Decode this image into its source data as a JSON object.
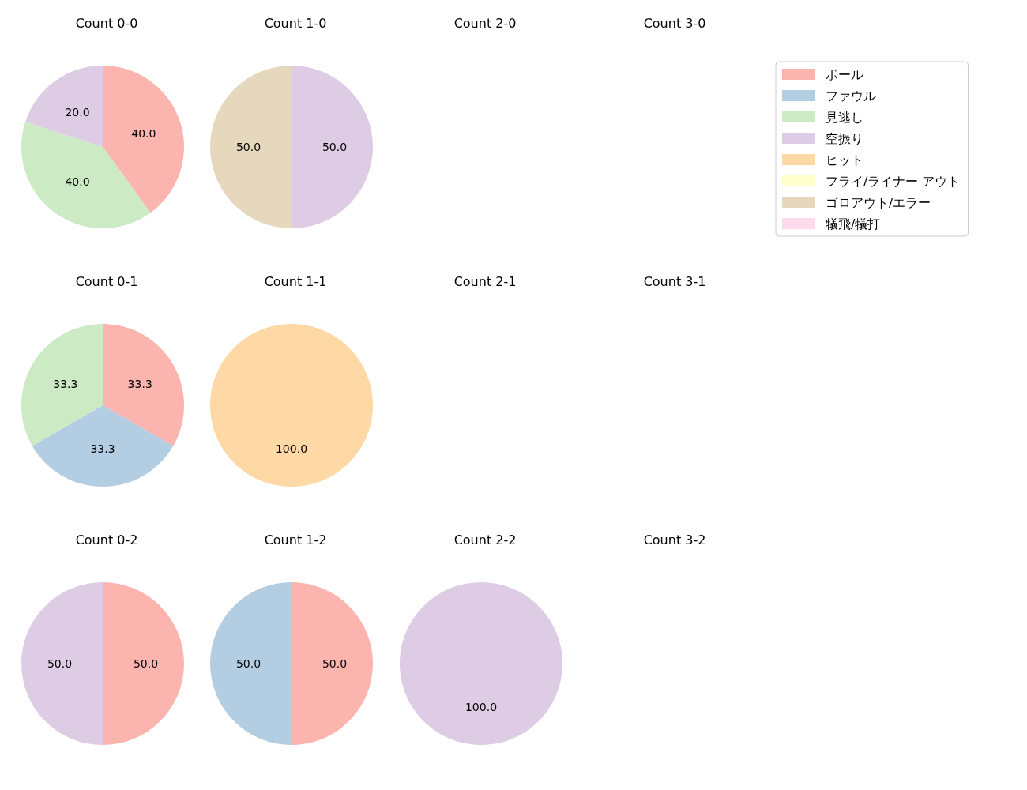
{
  "chart_data": [
    {
      "type": "pie",
      "title": "Count 0-0",
      "categories": [
        "ボール",
        "ファウル",
        "見逃し",
        "空振り",
        "ヒット",
        "フライ/ライナー アウト",
        "ゴロアウト/エラー",
        "犠飛/犠打"
      ],
      "values": [
        40,
        null,
        40,
        20,
        null,
        null,
        null,
        null
      ],
      "value_labels": [
        "40.0",
        null,
        "40.0",
        "20.0",
        null,
        null,
        null,
        null
      ],
      "colors": [
        "#fbb4ae",
        "#b3cde3",
        "#ccebc5",
        "#decbe4",
        "#fed9a6",
        "#ffffcc",
        "#e5d8bd",
        "#fddaec"
      ],
      "legend": "right"
    },
    {
      "type": "pie",
      "title": "Count 1-0",
      "values": [
        50,
        50
      ],
      "value_labels": [
        "50.0",
        "50.0"
      ],
      "colors": [
        "#decbe4",
        "#e5d8bd"
      ]
    },
    {
      "type": "other",
      "title": "Count 2-0"
    },
    {
      "type": "other",
      "title": "Count 3-0"
    },
    {
      "type": "pie",
      "title": "Count 0-1",
      "values": [
        33.3,
        33.3,
        33.3
      ],
      "value_labels": [
        "33.3",
        "33.3",
        "33.3"
      ],
      "colors": [
        "#fbb4ae",
        "#b3cde3",
        "#ccebc5"
      ]
    },
    {
      "type": "pie",
      "title": "Count 1-1",
      "values": [
        100
      ],
      "value_labels": [
        "100.0"
      ],
      "colors": [
        "#fed9a6"
      ]
    },
    {
      "type": "other",
      "title": "Count 2-1"
    },
    {
      "type": "other",
      "title": "Count 3-1"
    },
    {
      "type": "pie",
      "title": "Count 0-2",
      "values": [
        50,
        50
      ],
      "value_labels": [
        "50.0",
        "50.0"
      ],
      "colors": [
        "#fbb4ae",
        "#decbe4"
      ]
    },
    {
      "type": "pie",
      "title": "Count 1-2",
      "values": [
        50,
        50
      ],
      "value_labels": [
        "50.0",
        "50.0"
      ],
      "colors": [
        "#fbb4ae",
        "#b3cde3"
      ]
    },
    {
      "type": "pie",
      "title": "Count 2-2",
      "values": [
        100
      ],
      "value_labels": [
        "100.0"
      ],
      "colors": [
        "#decbe4"
      ]
    },
    {
      "type": "other",
      "title": "Count 3-2"
    }
  ]
}
